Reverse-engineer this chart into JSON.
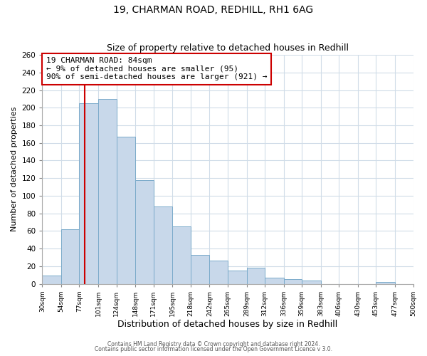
{
  "title1": "19, CHARMAN ROAD, REDHILL, RH1 6AG",
  "title2": "Size of property relative to detached houses in Redhill",
  "xlabel": "Distribution of detached houses by size in Redhill",
  "ylabel": "Number of detached properties",
  "bin_edges": [
    30,
    54,
    77,
    101,
    124,
    148,
    171,
    195,
    218,
    242,
    265,
    289,
    312,
    336,
    359,
    383,
    406,
    430,
    453,
    477,
    500
  ],
  "bin_counts": [
    9,
    62,
    205,
    210,
    167,
    118,
    88,
    65,
    33,
    26,
    15,
    18,
    7,
    5,
    4,
    0,
    0,
    0,
    2,
    0
  ],
  "bar_color": "#c8d8ea",
  "bar_edge_color": "#7aaaca",
  "vline_color": "#cc0000",
  "vline_x": 84,
  "annotation_line1": "19 CHARMAN ROAD: 84sqm",
  "annotation_line2": "← 9% of detached houses are smaller (95)",
  "annotation_line3": "90% of semi-detached houses are larger (921) →",
  "annotation_box_color": "#ffffff",
  "annotation_box_edge": "#cc0000",
  "ylim": [
    0,
    260
  ],
  "yticks": [
    0,
    20,
    40,
    60,
    80,
    100,
    120,
    140,
    160,
    180,
    200,
    220,
    240,
    260
  ],
  "tick_labels": [
    "30sqm",
    "54sqm",
    "77sqm",
    "101sqm",
    "124sqm",
    "148sqm",
    "171sqm",
    "195sqm",
    "218sqm",
    "242sqm",
    "265sqm",
    "289sqm",
    "312sqm",
    "336sqm",
    "359sqm",
    "383sqm",
    "406sqm",
    "430sqm",
    "453sqm",
    "477sqm",
    "500sqm"
  ],
  "footer1": "Contains HM Land Registry data © Crown copyright and database right 2024.",
  "footer2": "Contains public sector information licensed under the Open Government Licence v 3.0.",
  "bg_color": "#ffffff",
  "plot_bg_color": "#ffffff",
  "grid_color": "#d0dce8"
}
